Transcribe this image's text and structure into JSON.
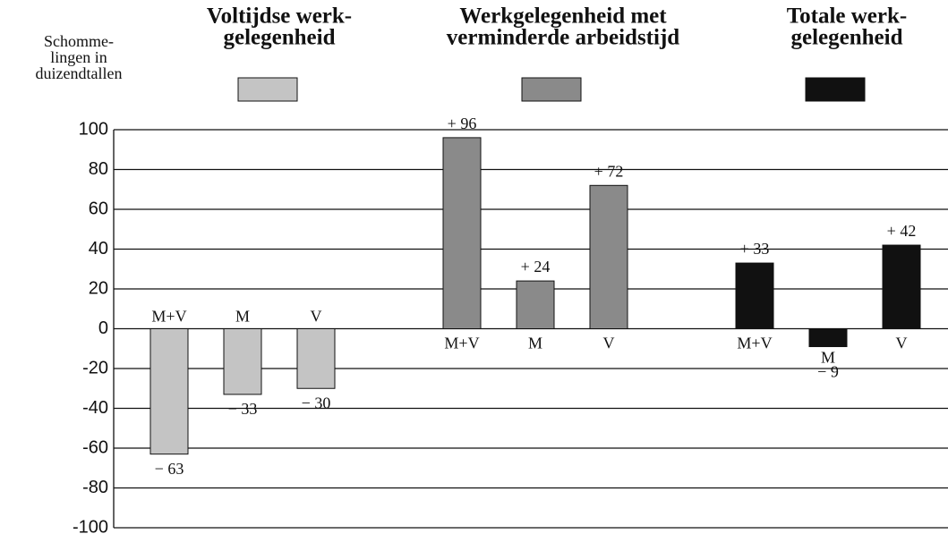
{
  "chart_data": {
    "type": "bar",
    "ylabel": [
      "Schomme-",
      "lingen in",
      "duizendtallen"
    ],
    "categories": [
      "M+V",
      "M",
      "V"
    ],
    "series": [
      {
        "name": [
          "Voltijdse werk-",
          "gelegenheid"
        ],
        "color": "#c4c4c4",
        "values": [
          -63,
          -33,
          -30
        ],
        "value_labels": [
          "− 63",
          "− 33",
          "− 30"
        ]
      },
      {
        "name": [
          "Werkgelegenheid met",
          "verminderde arbeidstijd"
        ],
        "color": "#8a8a8a",
        "values": [
          96,
          24,
          72
        ],
        "value_labels": [
          "+ 96",
          "+ 24",
          "+ 72"
        ]
      },
      {
        "name": [
          "Totale werk-",
          "gelegenheid"
        ],
        "color": "#111111",
        "values": [
          33,
          -9,
          42
        ],
        "value_labels": [
          "+ 33",
          "− 9",
          "+ 42"
        ]
      }
    ],
    "ylim": [
      -100,
      100
    ],
    "yticks": [
      100,
      80,
      60,
      40,
      20,
      0,
      -20,
      -40,
      -60,
      -80,
      -100
    ],
    "grid": true
  }
}
